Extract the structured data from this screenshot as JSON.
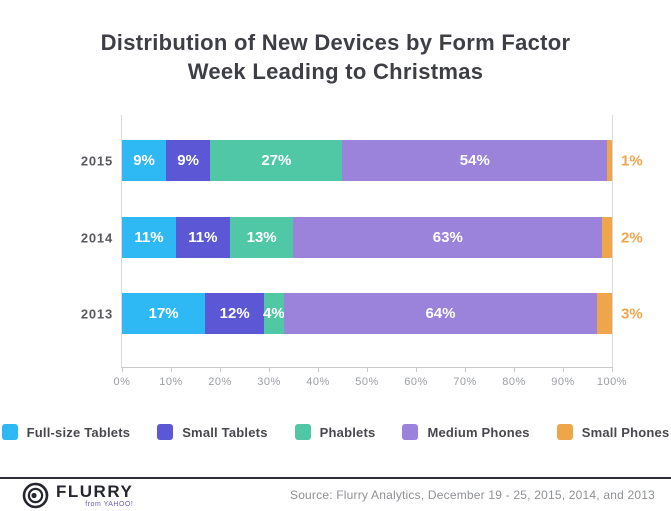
{
  "title": {
    "line1": "Distribution of New Devices by Form Factor",
    "line2": "Week Leading to Christmas"
  },
  "chart_data": {
    "type": "bar",
    "orientation": "horizontal-stacked",
    "categories": [
      "2015",
      "2014",
      "2013"
    ],
    "series": [
      {
        "name": "Full-size Tablets",
        "color": "#2eb9f4",
        "values": [
          9,
          11,
          17
        ]
      },
      {
        "name": "Small Tablets",
        "color": "#5c57d5",
        "values": [
          9,
          11,
          12
        ]
      },
      {
        "name": "Phablets",
        "color": "#50c8a5",
        "values": [
          27,
          13,
          4
        ]
      },
      {
        "name": "Medium Phones",
        "color": "#9b83dc",
        "values": [
          54,
          63,
          64
        ]
      },
      {
        "name": "Small Phones",
        "color": "#efa64b",
        "values": [
          1,
          2,
          3
        ]
      }
    ],
    "x_ticks": [
      "0%",
      "10%",
      "20%",
      "30%",
      "40%",
      "50%",
      "60%",
      "70%",
      "80%",
      "90%",
      "100%"
    ],
    "xlim": [
      0,
      100
    ],
    "xlabel": "",
    "ylabel": "",
    "grid": "edge-lines-only",
    "legend_position": "bottom-center",
    "bar_label_color": "#ffffff",
    "outside_label_color": "#efa64b"
  },
  "footer": {
    "brand_name": "FLURRY",
    "brand_sub": "from YAHOO!",
    "source": "Source: Flurry Analytics, December 19 - 25, 2015, 2014, and 2013"
  }
}
